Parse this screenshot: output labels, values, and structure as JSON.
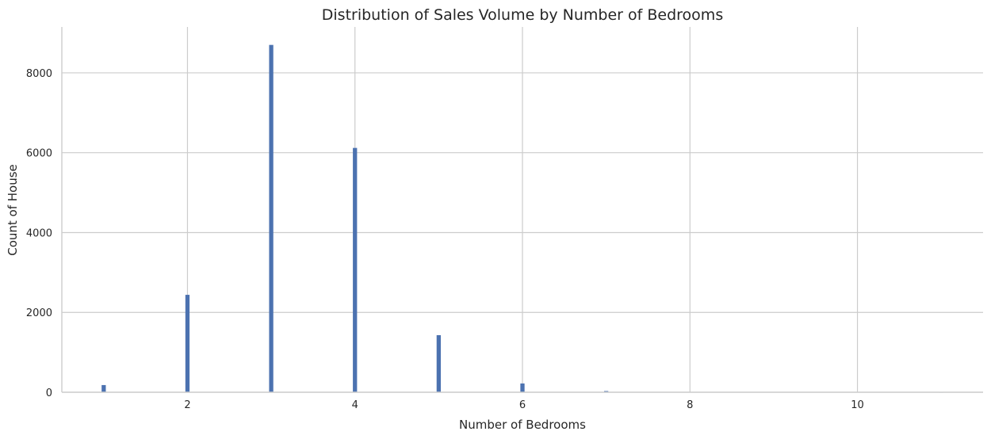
{
  "chart_data": {
    "type": "bar",
    "title": "Distribution of Sales Volume by Number of Bedrooms",
    "xlabel": "Number of Bedrooms",
    "ylabel": "Count of House",
    "xlim": [
      0.5,
      11.5
    ],
    "ylim": [
      0,
      9150
    ],
    "xticks": [
      2,
      4,
      6,
      8,
      10
    ],
    "yticks": [
      0,
      2000,
      4000,
      6000,
      8000
    ],
    "grid": true,
    "bar_color": "#4c72b0",
    "bin_width": 0.05,
    "bars": [
      {
        "x": 1,
        "value": 180
      },
      {
        "x": 2,
        "value": 2440
      },
      {
        "x": 3,
        "value": 8700
      },
      {
        "x": 4,
        "value": 6120
      },
      {
        "x": 5,
        "value": 1430
      },
      {
        "x": 6,
        "value": 220
      },
      {
        "x": 7,
        "value": 30
      },
      {
        "x": 8,
        "value": 10
      },
      {
        "x": 9,
        "value": 5
      },
      {
        "x": 10,
        "value": 3
      },
      {
        "x": 11,
        "value": 1
      }
    ]
  }
}
